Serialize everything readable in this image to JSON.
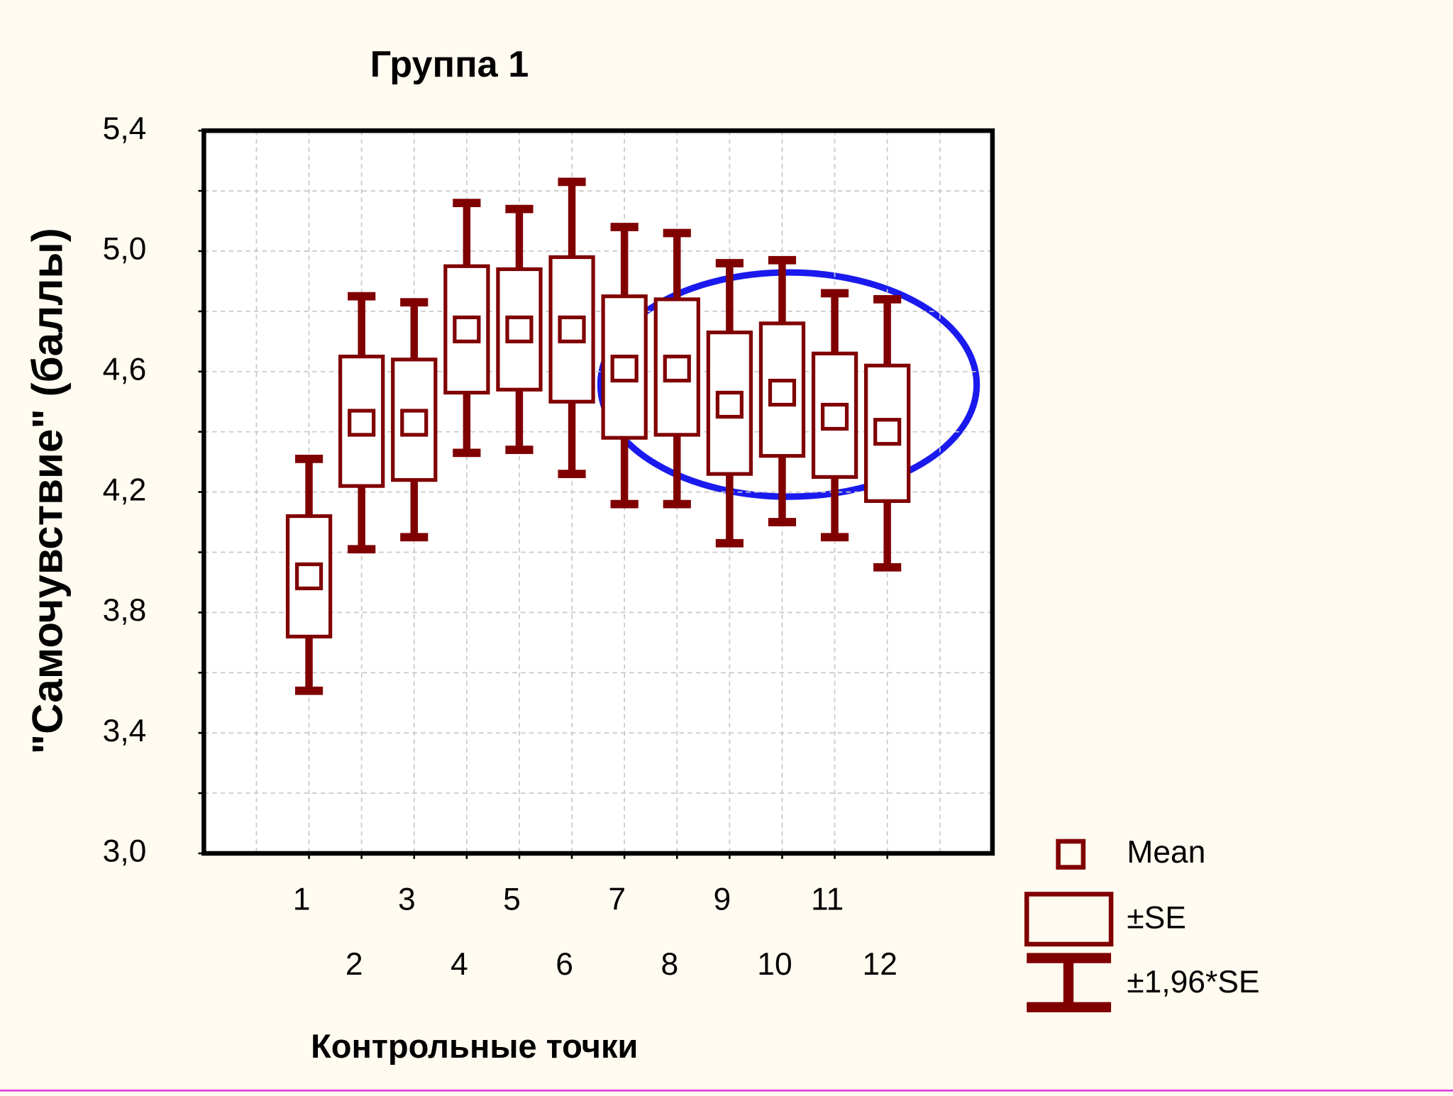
{
  "chart_data": {
    "type": "box",
    "title": "Группа 1",
    "x_label": "Контрольные точки",
    "y_label": "\"Самочувствие\" (баллы)",
    "categories": [
      "1",
      "2",
      "3",
      "4",
      "5",
      "6",
      "7",
      "8",
      "9",
      "10",
      "11",
      "12"
    ],
    "mean": [
      3.92,
      4.43,
      4.43,
      4.74,
      4.74,
      4.74,
      4.61,
      4.61,
      4.49,
      4.53,
      4.45,
      4.4
    ],
    "se_low": [
      3.72,
      4.22,
      4.24,
      4.53,
      4.54,
      4.5,
      4.38,
      4.39,
      4.26,
      4.32,
      4.25,
      4.17
    ],
    "se_high": [
      4.12,
      4.65,
      4.64,
      4.95,
      4.94,
      4.98,
      4.85,
      4.84,
      4.73,
      4.76,
      4.66,
      4.62
    ],
    "ci_low": [
      3.54,
      4.01,
      4.05,
      4.33,
      4.34,
      4.26,
      4.16,
      4.16,
      4.03,
      4.1,
      4.05,
      3.95
    ],
    "ci_high": [
      4.31,
      4.85,
      4.83,
      5.16,
      5.14,
      5.23,
      5.08,
      5.06,
      4.96,
      4.97,
      4.86,
      4.84
    ],
    "color": "#800000",
    "legend": [
      "Mean",
      "±SE",
      "±1,96*SE"
    ],
    "ylim": [
      3.0,
      5.4
    ],
    "yticks": [
      {
        "value": 3.0,
        "label": "3,0"
      },
      {
        "value": 3.4,
        "label": "3,4"
      },
      {
        "value": 3.8,
        "label": "3,8"
      },
      {
        "value": 4.2,
        "label": "4,2"
      },
      {
        "value": 4.6,
        "label": "4,6"
      },
      {
        "value": 5.0,
        "label": "5,0"
      },
      {
        "value": 5.4,
        "label": "5,4"
      }
    ],
    "minor_yticks": [
      3.2,
      3.6,
      4.0,
      4.4,
      4.8,
      5.2
    ],
    "grid": true
  }
}
